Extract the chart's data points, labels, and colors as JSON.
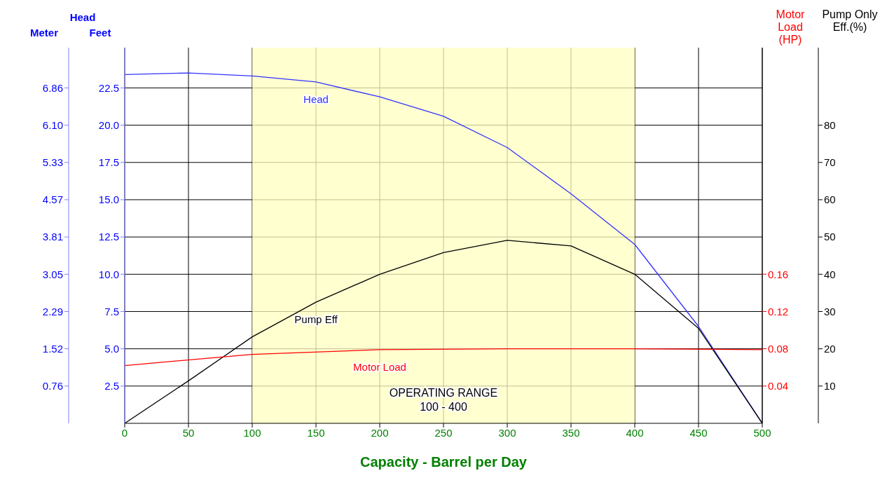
{
  "chart_data": {
    "type": "line",
    "xlabel": "Capacity - Barrel per Day",
    "ylabel": "Feet",
    "y2label": "Motor Load (HP)",
    "y3label": "Pump Only Eff.(%)",
    "annotations": [
      "Head",
      "Meter",
      "0.76",
      "1.52",
      "2.29",
      "3.05",
      "3.81",
      "4.57",
      "5.33",
      "6.10",
      "6.86"
    ],
    "xlim": [
      0,
      500
    ],
    "xticks": [
      0,
      50,
      100,
      150,
      200,
      250,
      300,
      350,
      400,
      450,
      500
    ],
    "ylim": [
      0,
      25.2
    ],
    "yticks": [
      {
        "value": 2.5,
        "label": "2.5"
      },
      {
        "value": 5,
        "label": "5.0"
      },
      {
        "value": 7.5,
        "label": "7.5"
      },
      {
        "value": 10,
        "label": "10.0"
      },
      {
        "value": 12.5,
        "label": "12.5"
      },
      {
        "value": 15,
        "label": "15.0"
      },
      {
        "value": 17.5,
        "label": "17.5"
      },
      {
        "value": 20,
        "label": "20.0"
      },
      {
        "value": 22.5,
        "label": "22.5"
      }
    ],
    "y2lim": [
      0,
      0.403
    ],
    "y2ticks": [
      0.04,
      0.08,
      0.12,
      0.16
    ],
    "y3lim": [
      0,
      100.8
    ],
    "y3ticks": [
      10,
      20,
      30,
      40,
      50,
      60,
      70,
      80
    ],
    "grid": true,
    "legend": false,
    "marker": "none",
    "bands": [
      {
        "axis": "x",
        "from": 100,
        "to": 400,
        "label": "OPERATING RANGE\n100 - 400",
        "color": "#ffffc0"
      }
    ],
    "series": [
      {
        "name": "Head",
        "color": "#3333ff",
        "x": [
          0,
          50,
          100,
          150,
          200,
          250,
          300,
          350,
          400,
          450,
          500
        ],
        "values": [
          23.4,
          23.5,
          23.3,
          22.9,
          21.9,
          20.6,
          18.5,
          15.4,
          12.0,
          6.5,
          0
        ]
      },
      {
        "name": "Pump Eff",
        "color": "#000000",
        "axis": "y3",
        "x": [
          0,
          50,
          100,
          150,
          200,
          250,
          300,
          350,
          400,
          450,
          500
        ],
        "values": [
          0,
          11.4,
          23.2,
          32.5,
          40,
          45.8,
          49.1,
          47.6,
          40,
          25.5,
          0
        ]
      },
      {
        "name": "Motor Load",
        "color": "#ff0000",
        "axis": "y2",
        "x": [
          0,
          100,
          200,
          300,
          400,
          500
        ],
        "values": [
          0.062,
          0.074,
          0.079,
          0.08,
          0.08,
          0.079
        ]
      }
    ]
  }
}
